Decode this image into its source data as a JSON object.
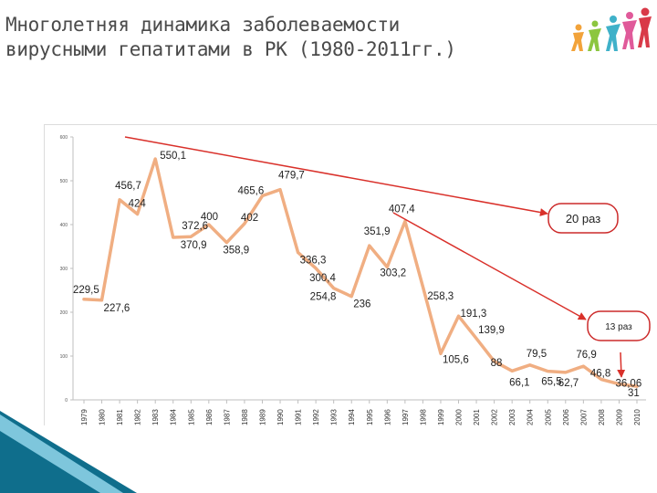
{
  "slide": {
    "title_line1": "Многолетняя динамика заболеваемости",
    "title_line2": "вирусными гепатитами в РК (1980-2011гг.)"
  },
  "colors": {
    "line": "#f0ae82",
    "arrow": "#d9302a",
    "label": "#222222",
    "axis": "#bfbfbf",
    "callout_border": "#cc2a2a",
    "corner_dark": "#0f6e8c",
    "corner_light": "#7ec6dc",
    "logo": [
      "#f2a33a",
      "#8cc63f",
      "#3fb1c9",
      "#e05a9a",
      "#d93a48"
    ]
  },
  "callouts": {
    "c20": "20 раз",
    "c13": "13 раз"
  },
  "chart_data": {
    "type": "line",
    "title": "",
    "xlabel": "",
    "ylabel": "",
    "ylim": [
      0,
      600
    ],
    "y_ticks": [
      "0",
      "100",
      "200",
      "300",
      "400",
      "500",
      "600"
    ],
    "grid": false,
    "x": [
      "1979",
      "1980",
      "1981",
      "1982",
      "1983",
      "1984",
      "1985",
      "1986",
      "1987",
      "1988",
      "1989",
      "1990",
      "1991",
      "1992",
      "1993",
      "1994",
      "1995",
      "1996",
      "1997",
      "1998",
      "1999",
      "2000",
      "2001",
      "2002",
      "2003",
      "2004",
      "2005",
      "2006",
      "2007",
      "2008",
      "2009",
      "2010"
    ],
    "series": [
      {
        "values": [
          229.5,
          227.6,
          456.7,
          424,
          550.1,
          370.9,
          372.6,
          400,
          358.9,
          402,
          465.6,
          479.7,
          336.3,
          300.4,
          254.8,
          236,
          351.9,
          303.2,
          407.4,
          258.3,
          105.6,
          191.3,
          139.9,
          88,
          66.1,
          79.5,
          65.5,
          62.7,
          76.9,
          46.8,
          36.06,
          31
        ],
        "labels": [
          "229,5",
          "227,6",
          "456,7",
          "424",
          "550,1",
          "370,9",
          "372,6",
          "400",
          "358,9",
          "402",
          "465,6",
          "479,7",
          "336,3",
          "300,4",
          "254,8",
          "236",
          "351,9",
          "303,2",
          "407,4",
          "258,3",
          "105,6",
          "191,3",
          "139,9",
          "88",
          "66,1",
          "79,5",
          "65,5",
          "62,7",
          "76,9",
          "46,8",
          "36,06",
          "31"
        ]
      }
    ]
  }
}
